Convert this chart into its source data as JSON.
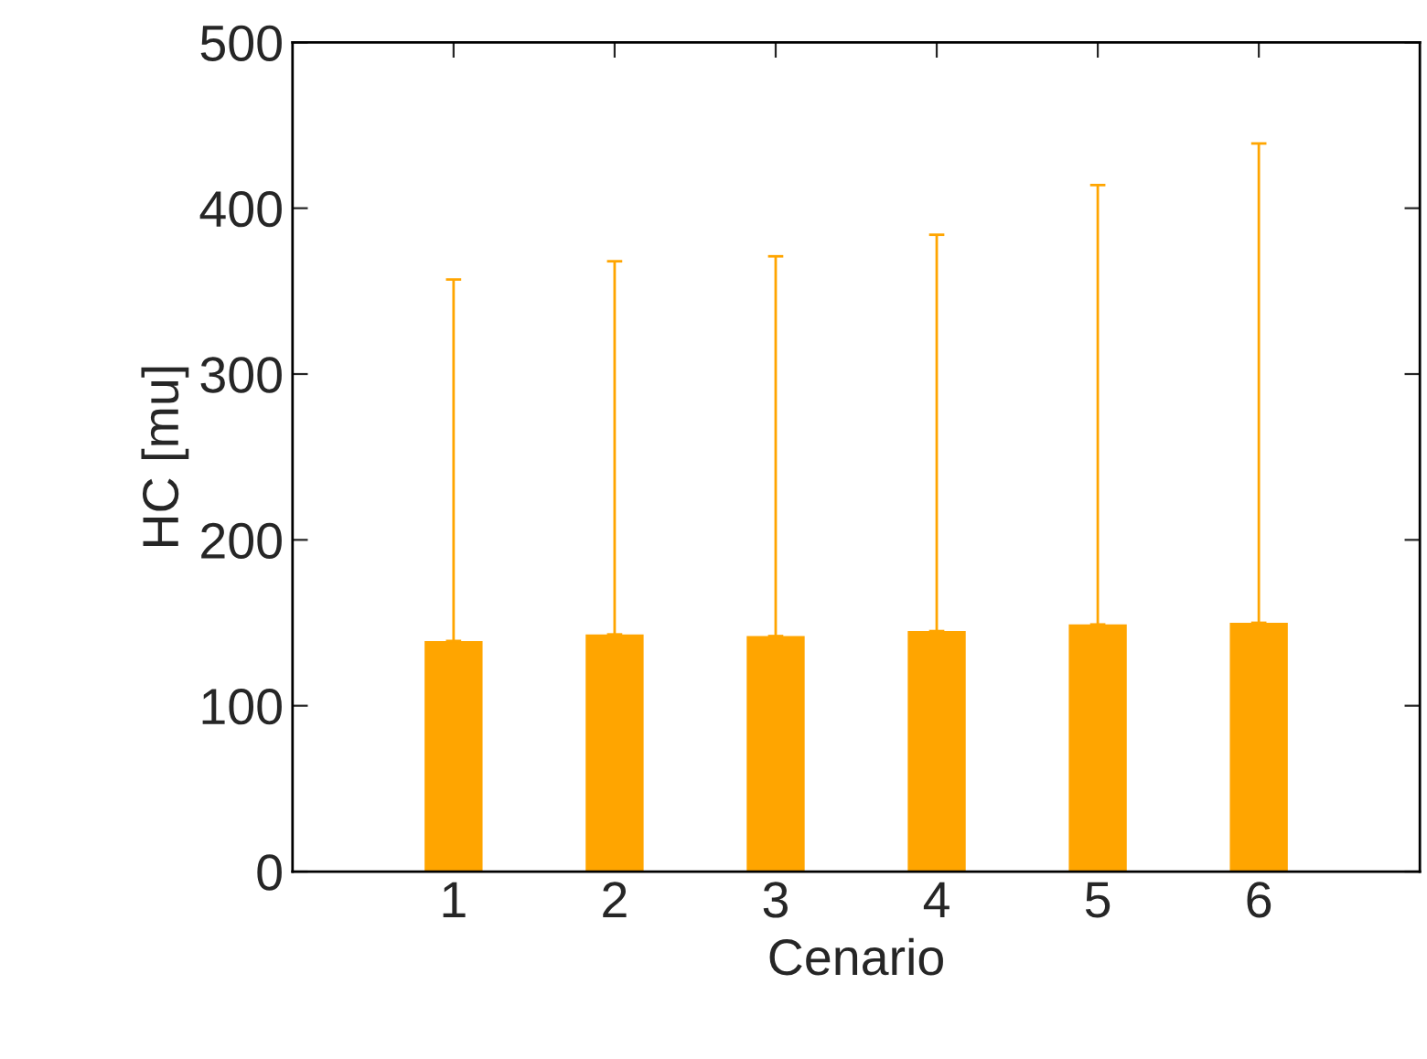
{
  "chart_data": {
    "type": "bar",
    "xlabel": "Cenario",
    "ylabel": "HC [mu]",
    "categories": [
      "1",
      "2",
      "3",
      "4",
      "5",
      "6"
    ],
    "values": [
      139,
      143,
      142,
      145,
      149,
      150
    ],
    "errors": [
      [
        139,
        357
      ],
      [
        143,
        368
      ],
      [
        142,
        371
      ],
      [
        145,
        384
      ],
      [
        149,
        414
      ],
      [
        150,
        439
      ]
    ],
    "color": "#ffa500",
    "ylim": [
      0,
      500
    ],
    "yticks": [
      0,
      100,
      200,
      300,
      400,
      500
    ],
    "grid": false,
    "legend": false
  }
}
